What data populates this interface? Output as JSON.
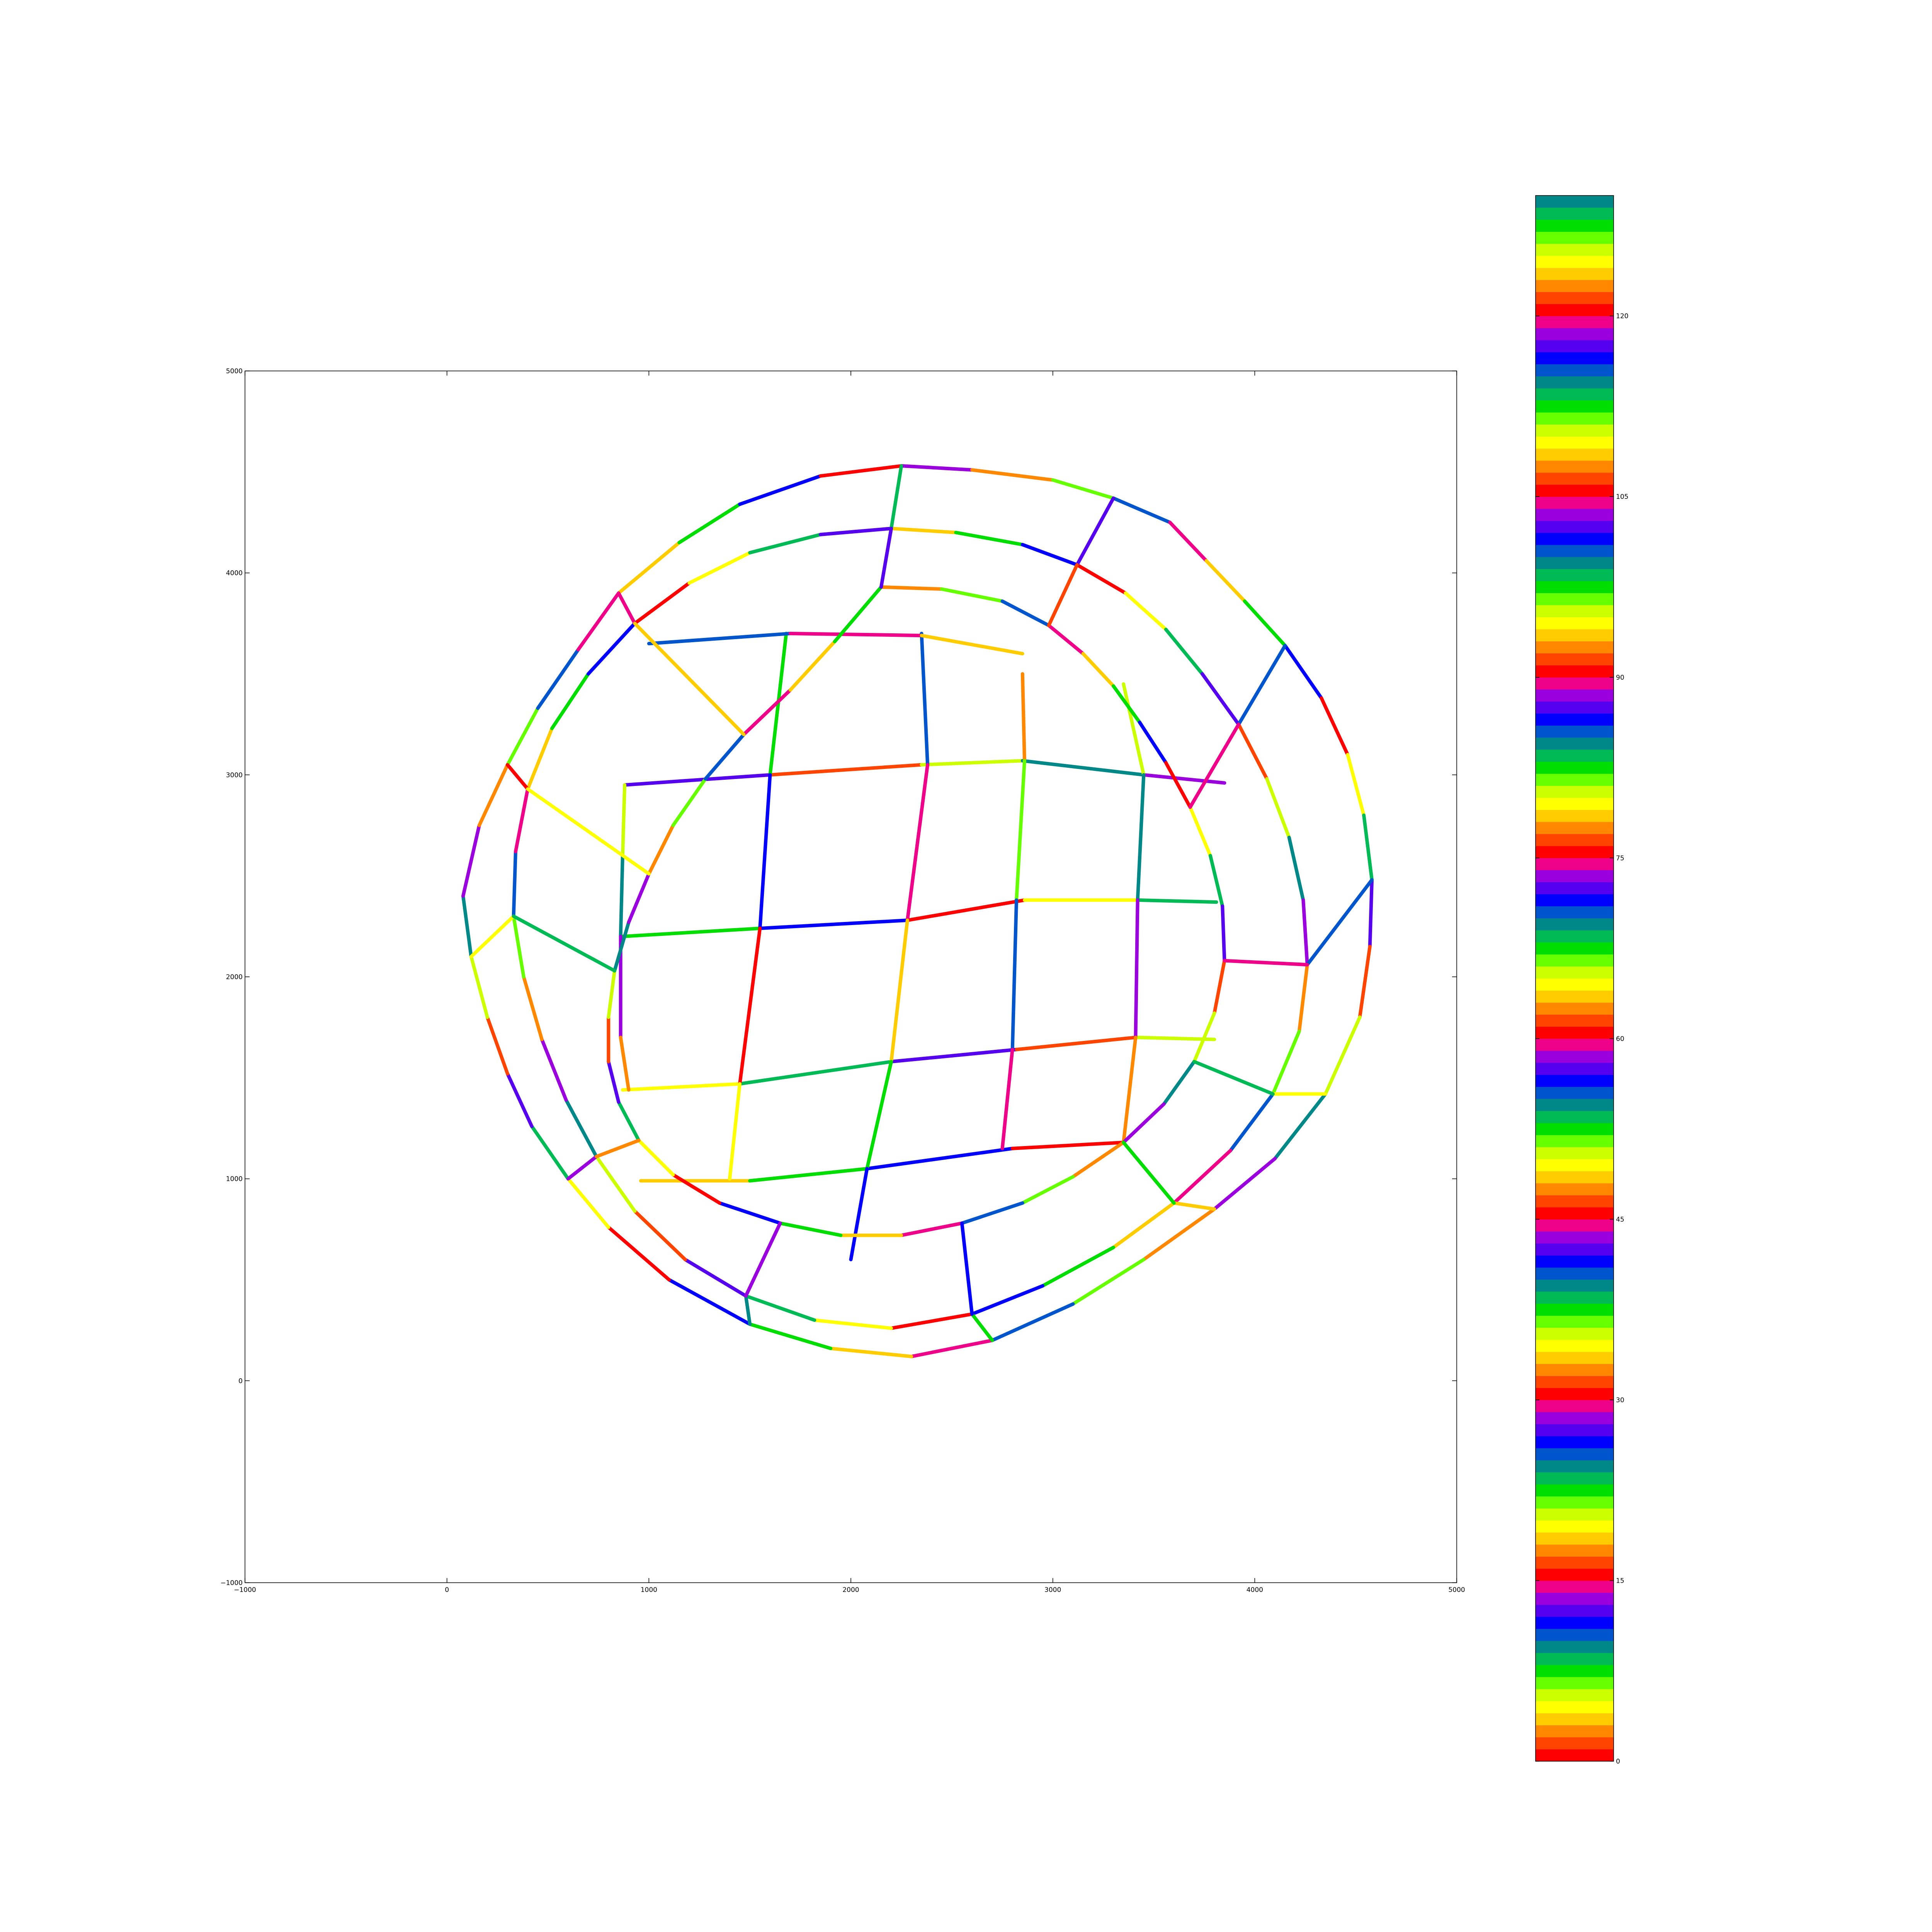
{
  "chart_data": [
    {
      "type": "line",
      "title": "",
      "xlabel": "",
      "ylabel": "",
      "xlim": [
        -1000,
        5000
      ],
      "ylim": [
        -1000,
        5000
      ],
      "x_ticks": [
        -1000,
        0,
        1000,
        2000,
        3000,
        4000,
        5000
      ],
      "y_ticks": [
        -1000,
        0,
        1000,
        2000,
        3000,
        4000,
        5000
      ],
      "grid": false,
      "line_color_scale": "colorbar",
      "series": [
        {
          "group": "inner_grid",
          "color_value": 42,
          "x": [
            880,
            1600,
            2350,
            2850,
            3450,
            3850
          ],
          "y": [
            2950,
            3000,
            3050,
            3070,
            3000,
            2960
          ]
        },
        {
          "group": "inner_grid",
          "color_value": 37,
          "x": [
            870,
            1550,
            2280,
            2860,
            3420,
            3810
          ],
          "y": [
            2200,
            2240,
            2280,
            2380,
            2380,
            2370
          ]
        },
        {
          "group": "inner_grid",
          "color_value": 34,
          "x": [
            870,
            1450,
            2200,
            2820,
            3410,
            3800
          ],
          "y": [
            1440,
            1470,
            1580,
            1640,
            1700,
            1690
          ]
        },
        {
          "group": "inner_grid",
          "color_value": 33,
          "x": [
            960,
            1500,
            2080,
            2800,
            3350
          ],
          "y": [
            990,
            990,
            1050,
            1150,
            1180
          ]
        },
        {
          "group": "inner_grid",
          "color_value": 35,
          "x": [
            880,
            870,
            860,
            860,
            900
          ],
          "y": [
            2950,
            2600,
            2200,
            1700,
            1440
          ]
        },
        {
          "group": "inner_grid",
          "color_value": 37,
          "x": [
            1680,
            1600,
            1550,
            1450,
            1400
          ],
          "y": [
            3700,
            3000,
            2240,
            1470,
            1000
          ]
        },
        {
          "group": "inner_grid",
          "color_value": 40,
          "x": [
            2350,
            2380,
            2280,
            2200,
            2080,
            2000
          ],
          "y": [
            3700,
            3050,
            2280,
            1580,
            1050,
            600
          ]
        },
        {
          "group": "inner_grid",
          "color_value": 32,
          "x": [
            2850,
            2860,
            2820,
            2800,
            2750
          ],
          "y": [
            3500,
            3070,
            2380,
            1640,
            1150
          ]
        },
        {
          "group": "inner_grid",
          "color_value": 35,
          "x": [
            3350,
            3450,
            3420,
            3410,
            3350
          ],
          "y": [
            3450,
            3000,
            2380,
            1700,
            1180
          ]
        },
        {
          "group": "inner_grid",
          "color_value": 10,
          "x": [
            1000,
            1700,
            2350,
            2850
          ],
          "y": [
            3650,
            3700,
            3690,
            3600
          ]
        },
        {
          "group": "ring_outer",
          "color_value": 28,
          "x": [
            2250,
            2600,
            3000,
            3300,
            3580,
            3760,
            3950,
            4150,
            4330,
            4460,
            4540,
            4580,
            4570,
            4520,
            4350,
            4100,
            3800,
            3450,
            3100,
            2700,
            2300,
            1900,
            1500,
            1100,
            800,
            600,
            420,
            300,
            200,
            120,
            80,
            160,
            300,
            450,
            650,
            850,
            1150,
            1450,
            1850,
            2250
          ],
          "y": [
            4530,
            4510,
            4460,
            4370,
            4250,
            4060,
            3860,
            3640,
            3380,
            3100,
            2800,
            2480,
            2150,
            1800,
            1420,
            1100,
            850,
            600,
            380,
            200,
            120,
            160,
            280,
            500,
            760,
            1000,
            1260,
            1520,
            1800,
            2100,
            2400,
            2750,
            3050,
            3330,
            3620,
            3900,
            4150,
            4340,
            4480,
            4530
          ]
        },
        {
          "group": "ring_middle",
          "color_value": 18,
          "x": [
            2200,
            2520,
            2850,
            3120,
            3360,
            3560,
            3740,
            3920,
            4060,
            4170,
            4240,
            4260,
            4220,
            4090,
            3880,
            3600,
            3300,
            2950,
            2600,
            2200,
            1820,
            1480,
            1180,
            930,
            740,
            590,
            470,
            380,
            330,
            340,
            400,
            520,
            700,
            930,
            1200,
            1500,
            1850,
            2200
          ],
          "y": [
            4220,
            4200,
            4140,
            4040,
            3900,
            3720,
            3500,
            3250,
            2980,
            2690,
            2380,
            2060,
            1730,
            1420,
            1140,
            880,
            660,
            470,
            330,
            260,
            300,
            420,
            600,
            840,
            1110,
            1390,
            1690,
            2000,
            2300,
            2620,
            2930,
            3230,
            3500,
            3750,
            3950,
            4100,
            4190,
            4220
          ]
        },
        {
          "group": "ring_inner",
          "color_value": 32,
          "x": [
            2150,
            2450,
            2750,
            2980,
            3150,
            3300,
            3430,
            3560,
            3680,
            3780,
            3840,
            3850,
            3800,
            3700,
            3550,
            3350,
            3100,
            2850,
            2550,
            2250,
            1950,
            1650,
            1350,
            1120,
            950,
            850,
            800,
            800,
            830,
            900,
            1000,
            1120,
            1280,
            1470,
            1700,
            1920,
            2150
          ],
          "y": [
            3930,
            3920,
            3860,
            3740,
            3600,
            3440,
            3260,
            3060,
            2840,
            2600,
            2350,
            2080,
            1820,
            1580,
            1370,
            1180,
            1010,
            880,
            780,
            720,
            720,
            780,
            880,
            1020,
            1190,
            1380,
            1580,
            1800,
            2030,
            2270,
            2510,
            2750,
            2980,
            3200,
            3420,
            3660,
            3930
          ]
        },
        {
          "group": "ring_spokes",
          "color_value": 8,
          "x": [
            2250,
            2200,
            2150
          ],
          "y": [
            4530,
            4220,
            3930
          ]
        },
        {
          "group": "ring_spokes",
          "color_value": 12,
          "x": [
            3300,
            3120,
            2980
          ],
          "y": [
            4370,
            4040,
            3740
          ]
        },
        {
          "group": "ring_spokes",
          "color_value": 40,
          "x": [
            4150,
            3920,
            3680
          ],
          "y": [
            3640,
            3250,
            2840
          ]
        },
        {
          "group": "ring_spokes",
          "color_value": 25,
          "x": [
            4580,
            4260,
            3850
          ],
          "y": [
            2480,
            2060,
            2080
          ]
        },
        {
          "group": "ring_spokes",
          "color_value": 4,
          "x": [
            4350,
            4090,
            3700
          ],
          "y": [
            1420,
            1420,
            1580
          ]
        },
        {
          "group": "ring_spokes",
          "color_value": 3,
          "x": [
            3800,
            3600,
            3350
          ],
          "y": [
            850,
            880,
            1180
          ]
        },
        {
          "group": "ring_spokes",
          "color_value": 22,
          "x": [
            2700,
            2600,
            2550
          ],
          "y": [
            200,
            330,
            780
          ]
        },
        {
          "group": "ring_spokes",
          "color_value": 9,
          "x": [
            1500,
            1480,
            1650
          ],
          "y": [
            280,
            420,
            780
          ]
        },
        {
          "group": "ring_spokes",
          "color_value": 28,
          "x": [
            600,
            740,
            950
          ],
          "y": [
            1000,
            1110,
            1190
          ]
        },
        {
          "group": "ring_spokes",
          "color_value": 19,
          "x": [
            120,
            330,
            830
          ],
          "y": [
            2100,
            2300,
            2030
          ]
        },
        {
          "group": "ring_spokes",
          "color_value": 0,
          "x": [
            300,
            400,
            1000
          ],
          "y": [
            3050,
            2930,
            2510
          ]
        },
        {
          "group": "ring_spokes",
          "color_value": 14,
          "x": [
            850,
            930,
            1470
          ],
          "y": [
            3900,
            3750,
            3200
          ]
        }
      ],
      "colorbar": {
        "min": 0,
        "max": 130,
        "ticks": [
          "0",
          "15",
          "30",
          "45",
          "60",
          "75",
          "90",
          "105",
          "120"
        ],
        "cycle": 15,
        "cycle_colors": [
          "#ff0000",
          "#ff4400",
          "#ff8800",
          "#ffcc00",
          "#ffff00",
          "#ccff00",
          "#66ff00",
          "#00dd00",
          "#00bb55",
          "#008888",
          "#0055cc",
          "#0000ff",
          "#5500ee",
          "#9900dd",
          "#ee0088"
        ]
      }
    }
  ]
}
